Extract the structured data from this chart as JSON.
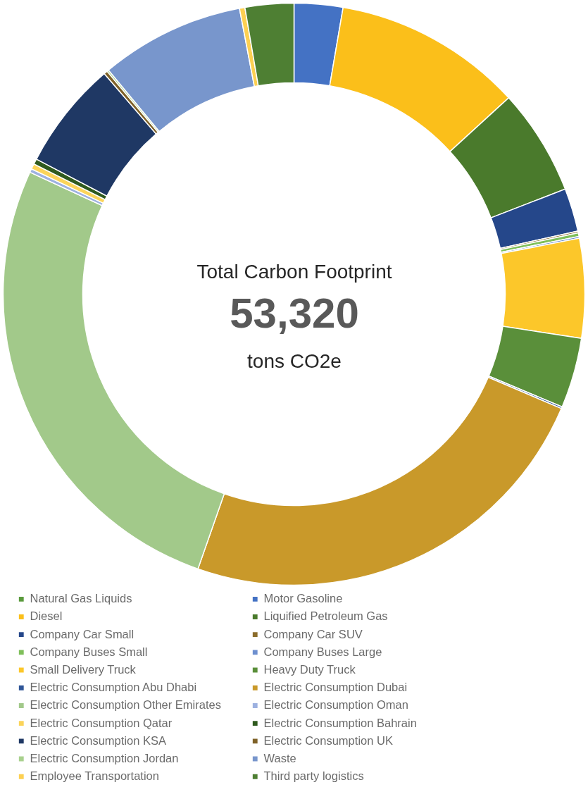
{
  "chart_data": {
    "type": "donut",
    "title": "Total Carbon Footprint",
    "annotations": [
      "53,320",
      "tons CO2e"
    ],
    "categories": [
      "Natural Gas Liquids",
      "Motor Gasoline",
      "Diesel",
      "Liquified Petroleum Gas",
      "Company Car Small",
      "Company Car SUV",
      "Company Buses Small",
      "Company Buses Large",
      "Small Delivery Truck",
      "Heavy Duty Truck",
      "Electric Consumption Abu Dhabi",
      "Electric Consumption Dubai",
      "Electric Consumption Other Emirates",
      "Electric Consumption Oman",
      "Electric Consumption Qatar",
      "Electric Consumption Bahrain",
      "Electric Consumption KSA",
      "Electric Consumption UK",
      "Electric Consumption Jordan",
      "Waste",
      "Employee Transportation",
      "Third party logistics"
    ],
    "values": [
      null,
      2.7,
      10.5,
      5.9,
      2.4,
      0.1,
      0.2,
      0.1,
      5.5,
      3.9,
      0.1,
      23.9,
      26.5,
      0.2,
      0.3,
      0.3,
      6.0,
      0.2,
      0.1,
      8.0,
      0.3,
      2.7
    ],
    "colors": [
      "#5a9a3c",
      "#4472c4",
      "#fbbf1a",
      "#4a7a2c",
      "#25478a",
      "#8c6d2c",
      "#7fbf5a",
      "#6d8fcf",
      "#fcc72a",
      "#5a8f3a",
      "#2f5597",
      "#c9992a",
      "#a2c98a",
      "#9db1e0",
      "#fbd45a",
      "#2f5a1e",
      "#1f3864",
      "#7f6228",
      "#a9d18e",
      "#7896cc",
      "#fdd052",
      "#4e7f33"
    ],
    "legend": "bottom"
  }
}
